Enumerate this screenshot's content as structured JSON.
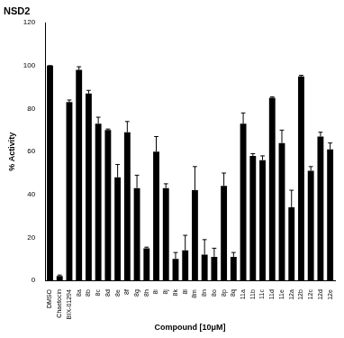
{
  "chart_data": {
    "type": "bar",
    "title": "NSD2",
    "x_label": "Compound [10μM]",
    "y_label": "% Activity",
    "categories": [
      "DMSO",
      "Chaetocin",
      "BIX-01294",
      "8a",
      "8b",
      "8c",
      "8d",
      "8e",
      "8f",
      "8g",
      "8h",
      "8i",
      "8j",
      "8k",
      "8l",
      "8m",
      "8n",
      "8o",
      "8p",
      "8q",
      "11a",
      "11b",
      "11c",
      "11d",
      "11e",
      "12a",
      "12b",
      "12c",
      "12d",
      "12e"
    ],
    "values": [
      100,
      2,
      83,
      98,
      87,
      73,
      70,
      48,
      69,
      43,
      15,
      60,
      43,
      10,
      14,
      42,
      12,
      11,
      44,
      11,
      73,
      58,
      56,
      85,
      64,
      34,
      95,
      51,
      67,
      61
    ],
    "errors": [
      0,
      0.5,
      1,
      1.5,
      1.5,
      3,
      0.5,
      6,
      5,
      6,
      0.5,
      7,
      2,
      3,
      7,
      11,
      7,
      4,
      6,
      2,
      5,
      1,
      2,
      0.5,
      6,
      8,
      0.5,
      2,
      2,
      3
    ],
    "color": "#000000",
    "ylim": [
      0,
      120
    ],
    "yticks": [
      0,
      20,
      40,
      60,
      80,
      100,
      120
    ],
    "grid": false
  }
}
